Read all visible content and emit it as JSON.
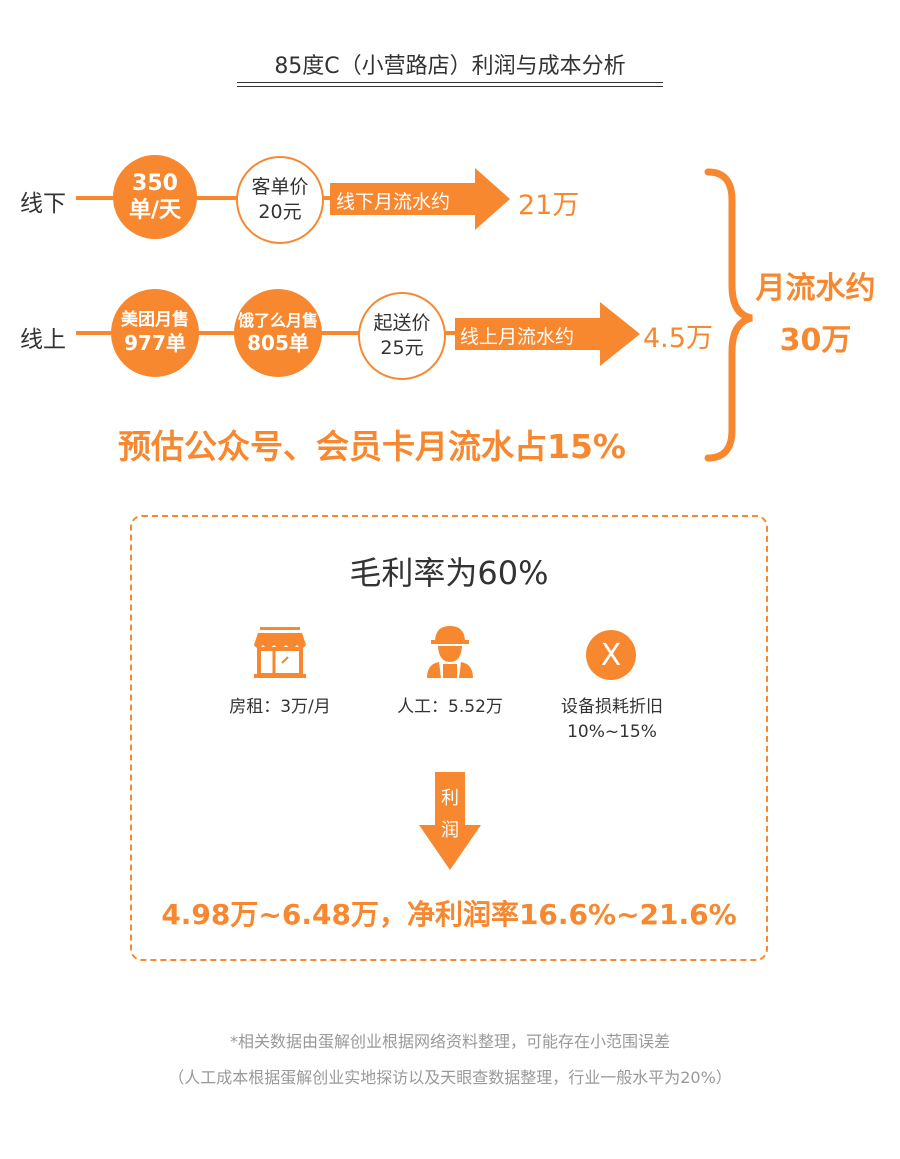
{
  "title": "85度C（小营路店）利润与成本分析",
  "colors": {
    "accent": "#f7882f",
    "text": "#333333",
    "footnote": "#999999"
  },
  "offline": {
    "label": "线下",
    "orders": [
      "350",
      "单/天"
    ],
    "price": [
      "客单价",
      "20元"
    ],
    "arrow_label": "线下月流水约",
    "result": "21万"
  },
  "online": {
    "label": "线上",
    "meituan": [
      "美团月售",
      "977单"
    ],
    "eleme": [
      "饿了么月售",
      "805单"
    ],
    "price": [
      "起送价",
      "25元"
    ],
    "arrow_label": "线上月流水约",
    "result": "4.5万"
  },
  "total": [
    "月流水约",
    "30万"
  ],
  "estimate": "预估公众号、会员卡月流水占15%",
  "cost": {
    "gross_margin": "毛利率为60%",
    "items": [
      {
        "icon": "store-icon",
        "label": "房租：3万/月"
      },
      {
        "icon": "worker-icon",
        "label": "人工：5.52万"
      },
      {
        "icon": "x-circle-icon",
        "label": "设备损耗折旧",
        "sub": "10%~15%"
      }
    ],
    "arrow_label": [
      "利",
      "润"
    ],
    "profit": "4.98万~6.48万，净利润率16.6%~21.6%"
  },
  "footnotes": [
    "*相关数据由蛋解创业根据网络资料整理，可能存在小范围误差",
    "（人工成本根据蛋解创业实地探访以及天眼查数据整理，行业一般水平为20%）"
  ]
}
